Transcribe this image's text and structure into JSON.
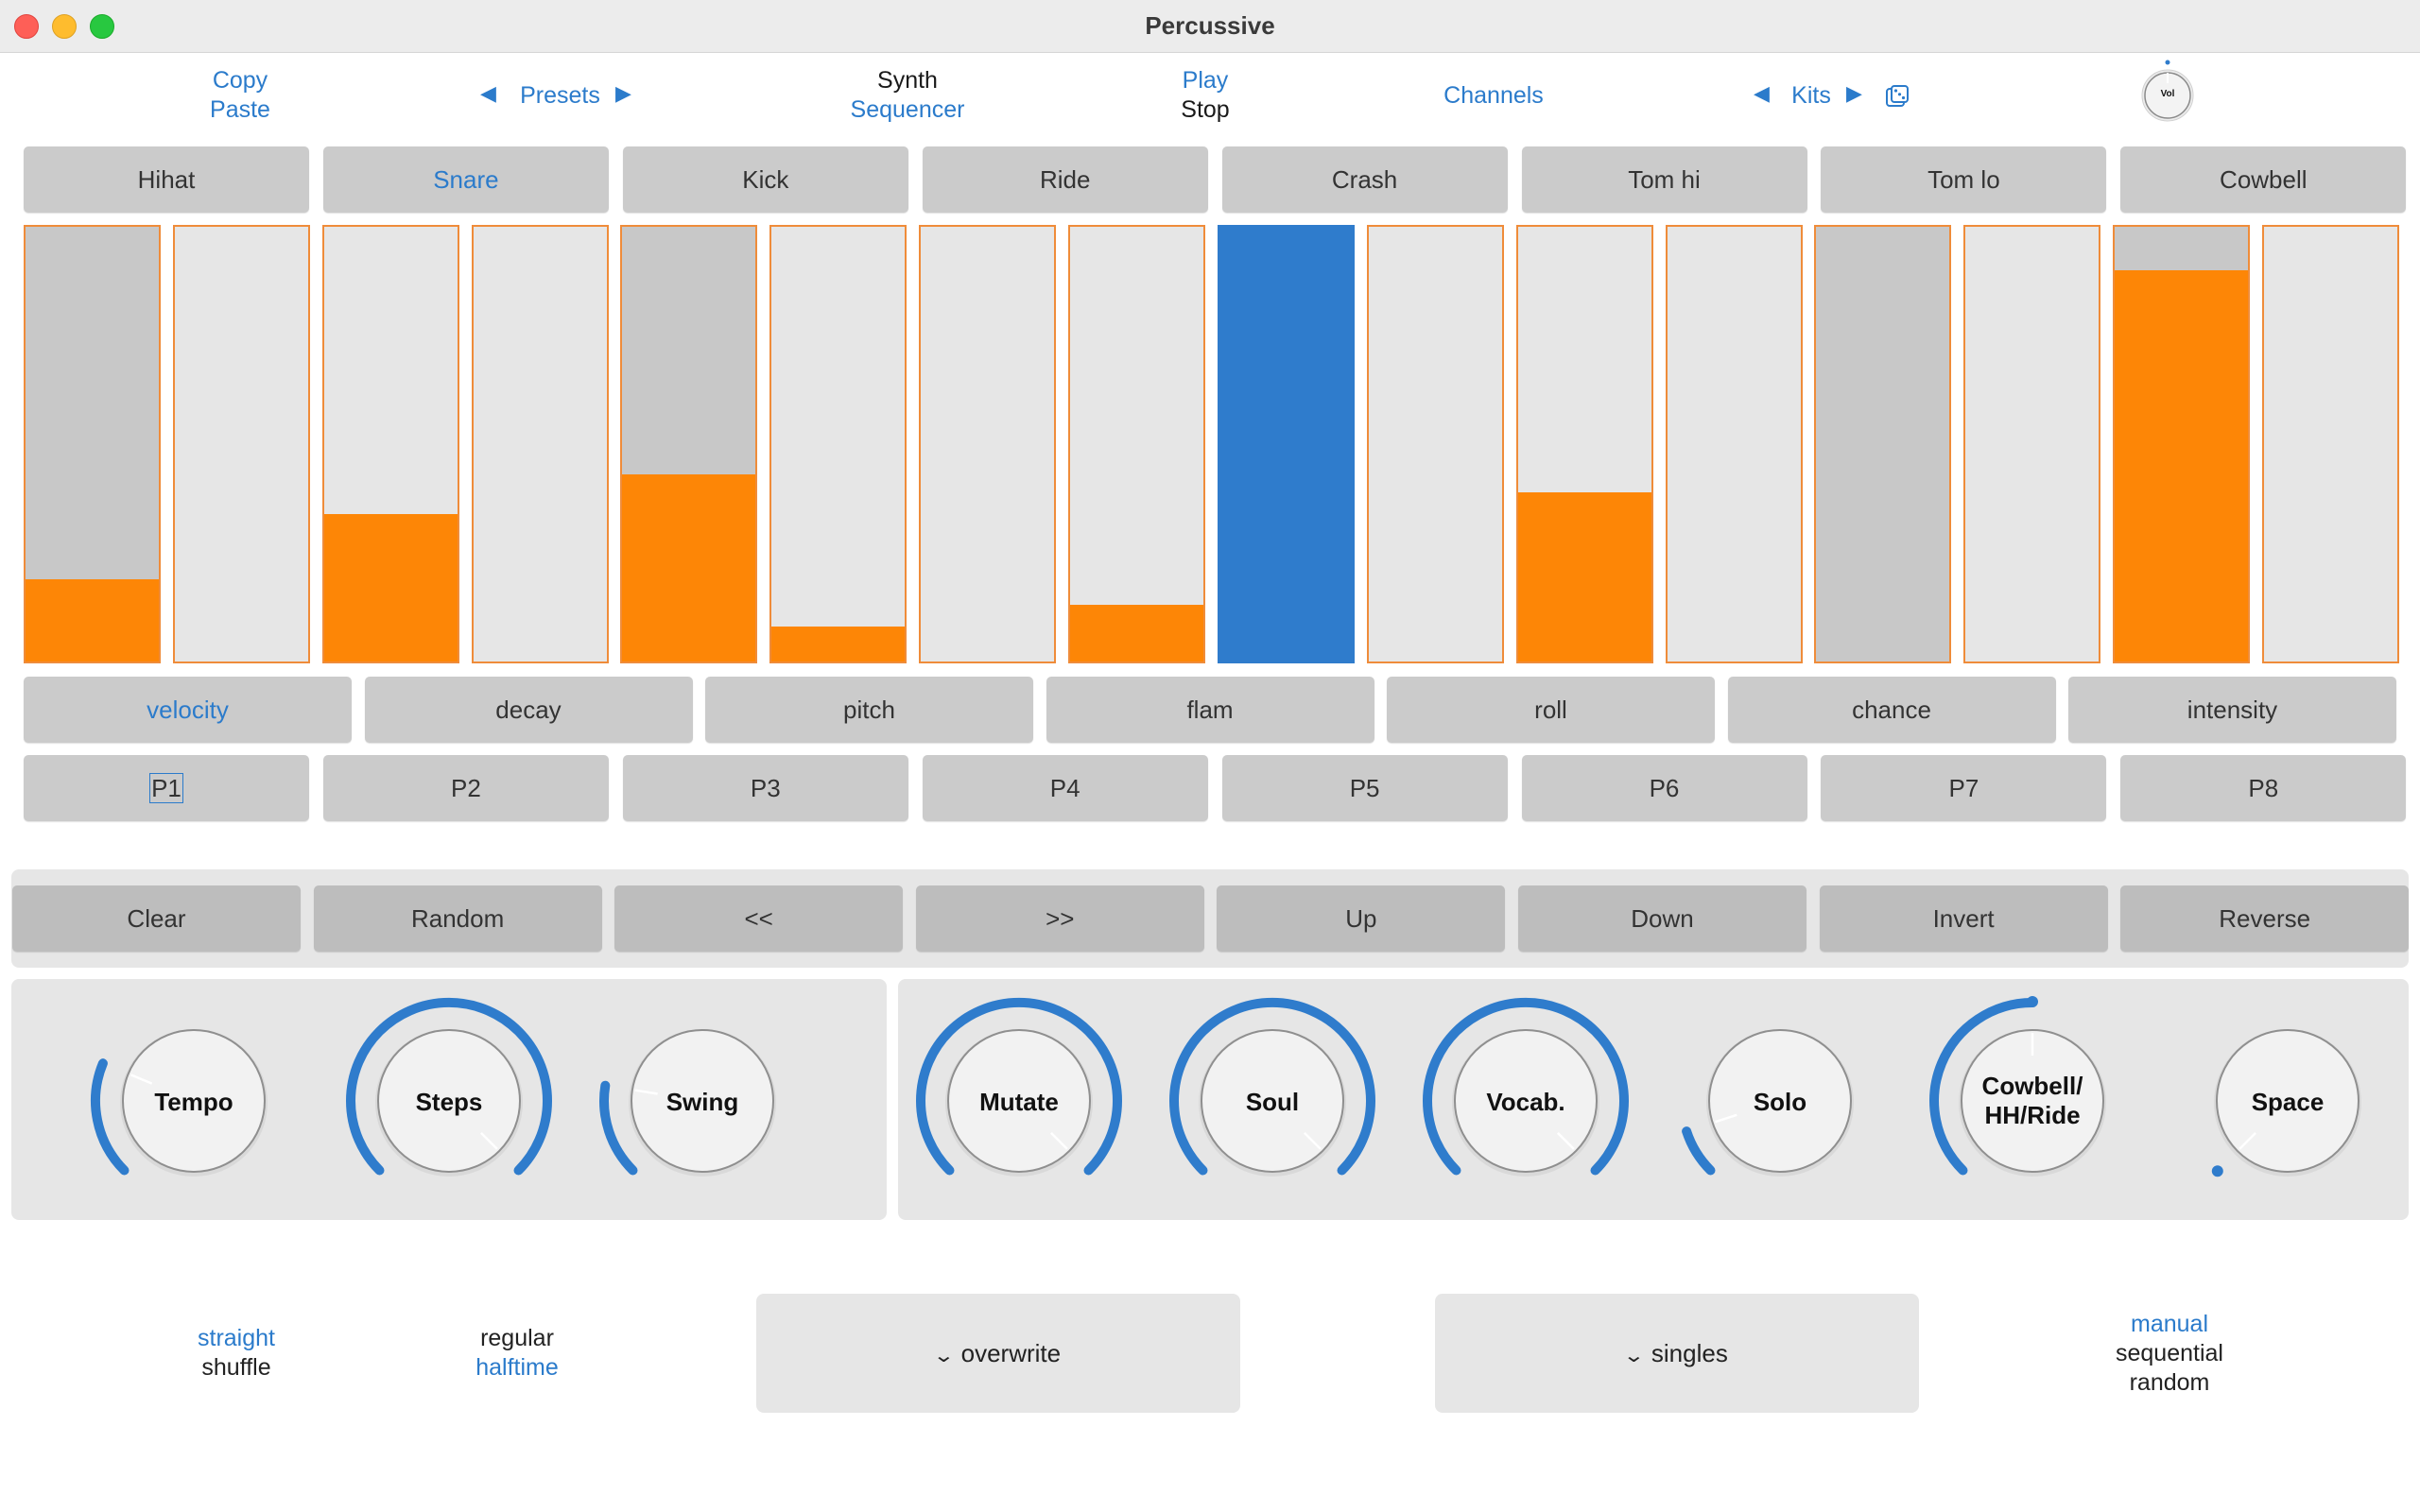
{
  "window": {
    "title": "Percussive"
  },
  "toolbar": {
    "copy": "Copy",
    "paste": "Paste",
    "presets": "Presets",
    "synth": "Synth",
    "sequencer": "Sequencer",
    "play": "Play",
    "stop": "Stop",
    "channels": "Channels",
    "kits": "Kits",
    "vol": "Vol"
  },
  "instruments": [
    "Hihat",
    "Snare",
    "Kick",
    "Ride",
    "Crash",
    "Tom hi",
    "Tom lo",
    "Cowbell"
  ],
  "instrument_selected": "Snare",
  "steps": [
    {
      "state": "on",
      "level": 0.19
    },
    {
      "state": "empty",
      "level": 0
    },
    {
      "state": "off",
      "level": 0.34
    },
    {
      "state": "empty",
      "level": 0
    },
    {
      "state": "on",
      "level": 0.43
    },
    {
      "state": "off",
      "level": 0.08
    },
    {
      "state": "empty",
      "level": 0
    },
    {
      "state": "off",
      "level": 0.13
    },
    {
      "state": "current",
      "level": 1.0
    },
    {
      "state": "empty",
      "level": 0
    },
    {
      "state": "off",
      "level": 0.39
    },
    {
      "state": "empty",
      "level": 0
    },
    {
      "state": "on",
      "level": 0
    },
    {
      "state": "empty",
      "level": 0
    },
    {
      "state": "on",
      "level": 0.9
    },
    {
      "state": "empty",
      "level": 0
    }
  ],
  "params": [
    "velocity",
    "decay",
    "pitch",
    "flam",
    "roll",
    "chance",
    "intensity"
  ],
  "param_selected": "velocity",
  "patterns": [
    "P1",
    "P2",
    "P3",
    "P4",
    "P5",
    "P6",
    "P7",
    "P8"
  ],
  "pattern_selected": "P1",
  "actions": [
    "Clear",
    "Random",
    "<<",
    ">>",
    "Up",
    "Down",
    "Invert",
    "Reverse"
  ],
  "knobs_left": [
    {
      "label": "Tempo",
      "value": 0.25
    },
    {
      "label": "Steps",
      "value": 1.0
    },
    {
      "label": "Swing",
      "value": 0.2
    }
  ],
  "knobs_right": [
    {
      "label": "Mutate",
      "value": 1.0
    },
    {
      "label": "Soul",
      "value": 1.0
    },
    {
      "label": "Vocab.",
      "value": 1.0
    },
    {
      "label": "Solo",
      "value": 0.1
    },
    {
      "label": "Cowbell/ HH/Ride",
      "label_line1": "Cowbell/",
      "label_line2": "HH/Ride",
      "value": 0.5
    },
    {
      "label": "Space",
      "value": 0.0
    }
  ],
  "timing": {
    "straight": "straight",
    "shuffle": "shuffle"
  },
  "speed": {
    "regular": "regular",
    "halftime": "halftime"
  },
  "write_mode": "overwrite",
  "hit_mode": "singles",
  "advance": {
    "manual": "manual",
    "sequential": "sequential",
    "random": "random"
  },
  "colors": {
    "accent": "#2b7bcb",
    "orange": "#fd8606",
    "arc": "#2f7ccc",
    "panel": "#e6e6e6",
    "button": "#cbcbcb"
  }
}
